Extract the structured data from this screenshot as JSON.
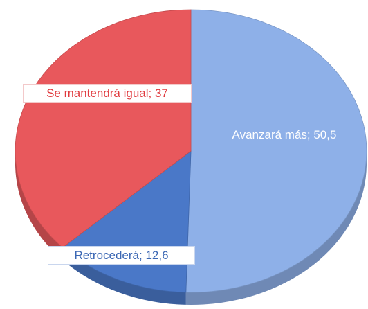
{
  "chart_data": {
    "type": "pie",
    "start_angle": 0,
    "direction": "clockwise",
    "labels": [
      "Avanzará más; 50,5",
      "Retrocederá; 12,6",
      "Se mantendrá igual; 37"
    ],
    "values": [
      50.5,
      12.6,
      37
    ],
    "colors": [
      "#8eb0e8",
      "#4a78c8",
      "#e8585c"
    ]
  }
}
